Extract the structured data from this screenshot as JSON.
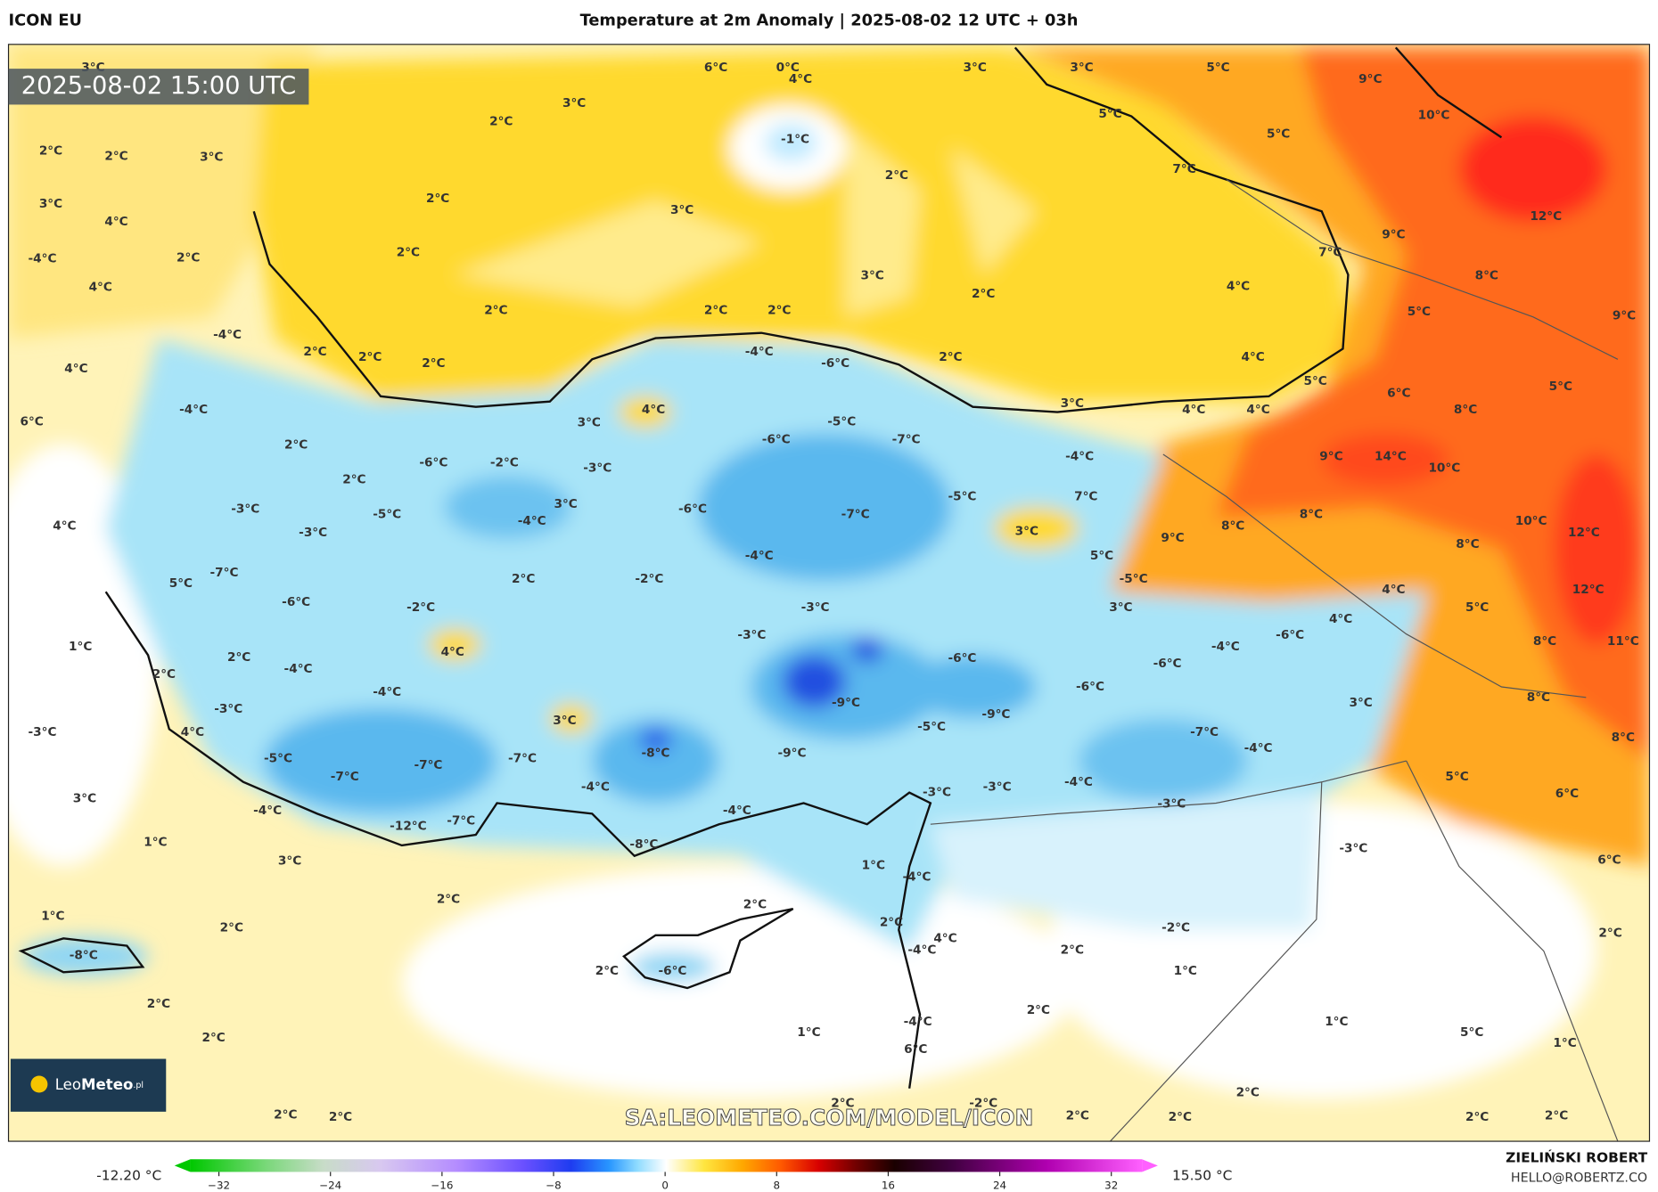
{
  "header": {
    "model": "ICON EU",
    "title": "Temperature at 2m Anomaly | 2025-08-02 12 UTC + 03h"
  },
  "map": {
    "timestamp": "2025-08-02 15:00 UTC",
    "watermark": "SA:LEOMETEO.COM/MODEL/ICON",
    "logo": {
      "part1": "Leo",
      "part2": "Meteo",
      "part3": ".pl"
    },
    "labels": [
      "3°C",
      "2°C",
      "3°C",
      "4°C",
      "-4°C",
      "2°C",
      "4°C",
      "3°C",
      "2°C",
      "4°C",
      "-4°C",
      "6°C",
      "-4°C",
      "2°C",
      "2°C",
      "2°C",
      "2°C",
      "3°C",
      "2°C",
      "2°C",
      "3°C",
      "2°C",
      "6°C",
      "0°C",
      "4°C",
      "-1°C",
      "3°C",
      "3°C",
      "5°C",
      "9°C",
      "10°C",
      "5°C",
      "5°C",
      "7°C",
      "2°C",
      "12°C",
      "9°C",
      "7°C",
      "8°C",
      "3°C",
      "2°C",
      "4°C",
      "2°C",
      "2°C",
      "5°C",
      "9°C",
      "4°C",
      "2°C",
      "-4°C",
      "-6°C",
      "5°C",
      "6°C",
      "5°C",
      "3°C",
      "4°C",
      "4°C",
      "8°C",
      "4°C",
      "3°C",
      "-5°C",
      "-6°C",
      "-7°C",
      "2°C",
      "-6°C",
      "-2°C",
      "-3°C",
      "-4°C",
      "9°C",
      "14°C",
      "10°C",
      "2°C",
      "-5°C",
      "7°C",
      "3°C",
      "-6°C",
      "-7°C",
      "-3°C",
      "-5°C",
      "-4°C",
      "8°C",
      "8°C",
      "10°C",
      "12°C",
      "3°C",
      "9°C",
      "4°C",
      "-3°C",
      "-4°C",
      "5°C",
      "8°C",
      "-2°C",
      "2°C",
      "-7°C",
      "5°C",
      "-5°C",
      "4°C",
      "12°C",
      "-6°C",
      "-2°C",
      "-3°C",
      "3°C",
      "5°C",
      "4°C",
      "-3°C",
      "-6°C",
      "-4°C",
      "8°C",
      "11°C",
      "1°C",
      "2°C",
      "4°C",
      "-6°C",
      "-6°C",
      "-4°C",
      "2°C",
      "-6°C",
      "-4°C",
      "-9°C",
      "3°C",
      "8°C",
      "-3°C",
      "-9°C",
      "3°C",
      "-5°C",
      "4°C",
      "-3°C",
      "-7°C",
      "8°C",
      "-4°C",
      "-8°C",
      "-9°C",
      "-5°C",
      "-7°C",
      "-7°C",
      "-7°C",
      "5°C",
      "-3°C",
      "-4°C",
      "-4°C",
      "-3°C",
      "6°C",
      "3°C",
      "-4°C",
      "-4°C",
      "-3°C",
      "-12°C",
      "-7°C",
      "1°C",
      "-8°C",
      "-3°C",
      "6°C",
      "3°C",
      "1°C",
      "-4°C",
      "2°C",
      "2°C",
      "1°C",
      "2°C",
      "-2°C",
      "2°C",
      "4°C",
      "2°C",
      "-8°C",
      "-4°C",
      "2°C",
      "-6°C",
      "2°C",
      "1°C",
      "2°C",
      "2°C",
      "-4°C",
      "1°C",
      "1°C",
      "5°C",
      "2°C",
      "6°C",
      "1°C",
      "2°C",
      "-2°C",
      "2°C",
      "2°C",
      "2°C",
      "2°C",
      "2°C",
      "2°C",
      "2°C"
    ]
  },
  "colorbar": {
    "min_label": "-12.20 °C",
    "max_label": "15.50 °C",
    "ticks": [
      "−32",
      "−24",
      "−16",
      "−8",
      "0",
      "8",
      "16",
      "24",
      "32"
    ]
  },
  "footer": {
    "author": "ZIELIŃSKI ROBERT",
    "email": "HELLO@ROBERTZ.CO"
  }
}
